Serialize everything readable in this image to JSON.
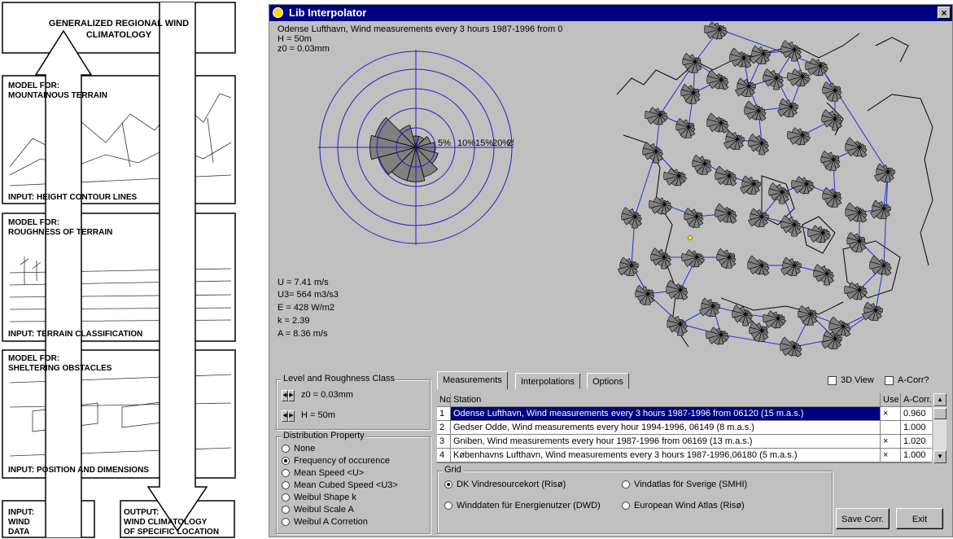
{
  "diagram": {
    "top_title": [
      "GENERALIZED REGIONAL WIND",
      "CLIMATOLOGY"
    ],
    "section1": {
      "model": [
        "MODEL FOR:",
        "MOUNTAINOUS TERRAIN"
      ],
      "input": "INPUT: HEIGHT CONTOUR LINES"
    },
    "section2": {
      "model": [
        "MODEL FOR:",
        "ROUGHNESS OF TERRAIN"
      ],
      "input": "INPUT: TERRAIN CLASSIFICATION"
    },
    "section3": {
      "model": [
        "MODEL FOR:",
        "SHELTERING OBSTACLES"
      ],
      "input": "INPUT: POSITION AND DIMENSIONS"
    },
    "bottom_left": [
      "INPUT:",
      "WIND",
      "DATA"
    ],
    "bottom_right": [
      "OUTPUT:",
      "WIND CLIMATOLOGY",
      "OF SPECIFIC LOCATION"
    ]
  },
  "window": {
    "title": "Lib Interpolator",
    "close_label": "×",
    "header_lines": [
      "Odense Lufthavn, Wind measurements every 3 hours 1987-1996 from 0",
      "H = 50m",
      "z0 = 0.03mm"
    ],
    "stats": [
      "U = 7.41 m/s",
      "U3= 564 m3/s3",
      "E = 428 W/m2",
      "k = 2.39",
      "A = 8.36 m/s"
    ],
    "rose": {
      "ring_labels": [
        "5%",
        "10%",
        "15%",
        "20%",
        "25%"
      ],
      "sectors": [
        3,
        3,
        4,
        5,
        6,
        8,
        9,
        9,
        10,
        12,
        11,
        6
      ]
    },
    "level_box": {
      "caption": "Level and Roughness Class",
      "z0": "z0 = 0.03mm",
      "h": "H = 50m"
    },
    "dist_box": {
      "caption": "Distribution Property",
      "options": [
        "None",
        "Frequency of occurence",
        "Mean Speed <U>",
        "Mean Cubed Speed <U3>",
        "Weibul Shape k",
        "Weibul Scale A",
        "Weibul  A Corretion"
      ],
      "selected": 1
    },
    "tabs": [
      "Measurements",
      "Interpolations",
      "Options"
    ],
    "check_3d": "3D View",
    "check_acorr": "A-Corr?",
    "table": {
      "headers": [
        "No.",
        "Station",
        "Use",
        "A-Corr."
      ],
      "rows": [
        {
          "no": "1",
          "station": "Odense Lufthavn, Wind measurements every 3 hours 1987-1996 from 06120 (15 m.a.s.)",
          "use": "×",
          "acorr": "0.960"
        },
        {
          "no": "2",
          "station": "Gedser Odde, Wind measurements every hour 1994-1996, 06149  (8 m.a.s.)",
          "use": "",
          "acorr": "1.000"
        },
        {
          "no": "3",
          "station": "Gniben, Wind measurements every hour 1987-1996 from 06169 (13 m.a.s.)",
          "use": "×",
          "acorr": "1.020"
        },
        {
          "no": "4",
          "station": "Københavns Lufthavn, Wind measurements every 3 hours 1987-1996,06180 (5 m.a.s.)",
          "use": "×",
          "acorr": "1.000"
        }
      ]
    },
    "grid_box": {
      "caption": "Grid",
      "options": [
        "DK Vindresourcekort (Risø)",
        "Vindatlas för Sverige (SMHI)",
        "Winddaten für Energienutzer (DWD)",
        "European Wind Atlas (Risø)"
      ],
      "selected": 0
    },
    "save_button": "Save Corr.",
    "exit_button": "Exit"
  }
}
